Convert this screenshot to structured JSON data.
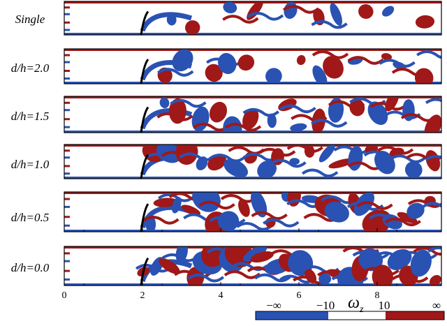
{
  "panels": [
    {
      "id": "single",
      "label": "Single",
      "plate_x": 2.0,
      "has_xticks": false
    },
    {
      "id": "d2",
      "label": "d/h=2.0",
      "plate_x": 2.0,
      "has_xticks": false
    },
    {
      "id": "d15",
      "label": "d/h=1.5",
      "plate_x": 2.0,
      "has_xticks": false
    },
    {
      "id": "d1",
      "label": "d/h=1.0",
      "plate_x": 2.0,
      "has_xticks": false
    },
    {
      "id": "d05",
      "label": "d/h=0.5",
      "plate_x": 2.0,
      "has_xticks": true
    },
    {
      "id": "d0",
      "label": "d/h=0.0",
      "plate_x": 2.0,
      "has_xticks": true
    }
  ],
  "x_axis": {
    "ticks": [
      "0",
      "2",
      "4",
      "6",
      "8"
    ],
    "range": [
      0,
      9.6
    ]
  },
  "colorbar": {
    "symbol": "ω",
    "subscript": "z",
    "labels": [
      "−∞",
      "−10",
      "10",
      "∞"
    ],
    "colors": {
      "negative": "#2a52b3",
      "neutral": "#ffffff",
      "positive": "#a01818"
    }
  },
  "colors": {
    "blue": "#2a52b3",
    "red": "#a01818",
    "plate": "#000000"
  }
}
